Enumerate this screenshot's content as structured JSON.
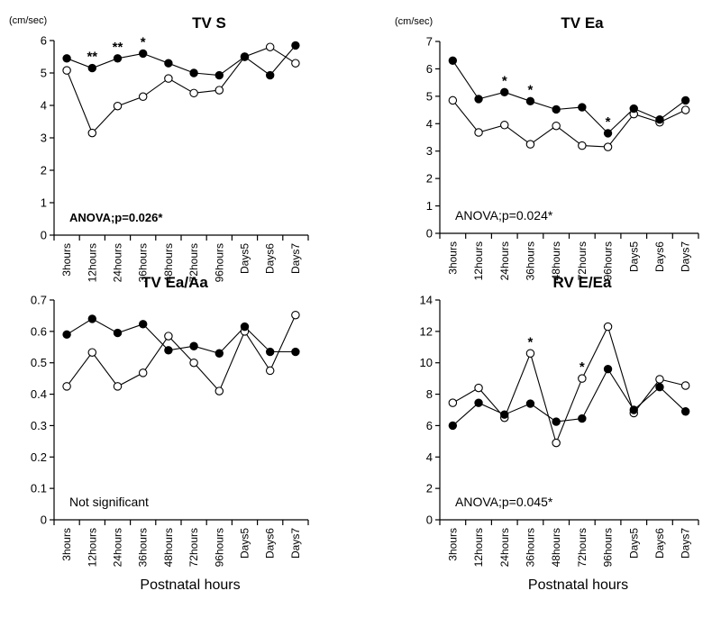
{
  "chart_data": [
    {
      "type": "line",
      "title": "TV S",
      "unit_label": "(cm/sec)",
      "xlabel": "",
      "ylabel": "",
      "ylim": [
        0,
        6
      ],
      "yticks": [
        "0",
        "1",
        "2",
        "3",
        "4",
        "5",
        "6"
      ],
      "categories": [
        "3hours",
        "12hours",
        "24hours",
        "36hours",
        "48hours",
        "72hours",
        "96hours",
        "Days5",
        "Days6",
        "Days7"
      ],
      "series": [
        {
          "style": "filled",
          "values": [
            5.45,
            5.15,
            5.45,
            5.6,
            5.3,
            5.0,
            4.93,
            5.5,
            4.93,
            5.85
          ]
        },
        {
          "style": "open",
          "values": [
            5.08,
            3.15,
            3.98,
            4.27,
            4.83,
            4.38,
            4.47,
            5.5,
            5.8,
            5.3
          ]
        }
      ],
      "significance": [
        "",
        "**",
        "**",
        "*",
        "",
        "",
        "",
        "",
        "",
        ""
      ],
      "annotation": "ANOVA;p=0.026*",
      "annotation_bold": true
    },
    {
      "type": "line",
      "title": "TV Ea",
      "unit_label": "(cm/sec)",
      "xlabel": "",
      "ylabel": "",
      "ylim": [
        0,
        7
      ],
      "yticks": [
        "0",
        "1",
        "2",
        "3",
        "4",
        "5",
        "6",
        "7"
      ],
      "categories": [
        "3hours",
        "12hours",
        "24hours",
        "36hours",
        "48hours",
        "72hours",
        "96hours",
        "Days5",
        "Days6",
        "Days7"
      ],
      "series": [
        {
          "style": "filled",
          "values": [
            6.3,
            4.9,
            5.15,
            4.82,
            4.52,
            4.6,
            3.65,
            4.55,
            4.15,
            4.85
          ]
        },
        {
          "style": "open",
          "values": [
            4.85,
            3.68,
            3.95,
            3.25,
            3.92,
            3.2,
            3.15,
            4.35,
            4.05,
            4.5
          ]
        }
      ],
      "significance": [
        "",
        "",
        "*",
        "*",
        "",
        "",
        "*",
        "",
        "",
        ""
      ],
      "annotation": "ANOVA;p=0.024*",
      "annotation_bold": false
    },
    {
      "type": "line",
      "title": "TV Ea/Aa",
      "unit_label": "",
      "xlabel": "Postnatal hours",
      "ylabel": "",
      "ylim": [
        0,
        0.7
      ],
      "yticks": [
        "0",
        "0.1",
        "0.2",
        "0.3",
        "0.4",
        "0.5",
        "0.6",
        "0.7"
      ],
      "categories": [
        "3hours",
        "12hours",
        "24hours",
        "36hours",
        "48hours",
        "72hours",
        "96hours",
        "Days5",
        "Days6",
        "Days7"
      ],
      "series": [
        {
          "style": "filled",
          "values": [
            0.59,
            0.64,
            0.595,
            0.623,
            0.54,
            0.553,
            0.53,
            0.615,
            0.535,
            0.535
          ]
        },
        {
          "style": "open",
          "values": [
            0.425,
            0.533,
            0.425,
            0.468,
            0.585,
            0.5,
            0.41,
            0.6,
            0.475,
            0.652
          ]
        }
      ],
      "significance": [
        "",
        "",
        "",
        "",
        "",
        "",
        "",
        "",
        "",
        ""
      ],
      "annotation": "Not significant",
      "annotation_bold": false
    },
    {
      "type": "line",
      "title": "RV E/Ea",
      "unit_label": "",
      "xlabel": "Postnatal hours",
      "ylabel": "",
      "ylim": [
        0,
        14
      ],
      "yticks": [
        "0",
        "2",
        "4",
        "6",
        "8",
        "10",
        "12",
        "14"
      ],
      "categories": [
        "3hours",
        "12hours",
        "24hours",
        "36hours",
        "48hours",
        "72hours",
        "96hours",
        "Days5",
        "Days6",
        "Days7"
      ],
      "series": [
        {
          "style": "filled",
          "values": [
            6.0,
            7.45,
            6.7,
            7.4,
            6.25,
            6.45,
            9.6,
            7.0,
            8.45,
            6.9
          ]
        },
        {
          "style": "open",
          "values": [
            7.45,
            8.4,
            6.5,
            10.6,
            4.9,
            9.0,
            12.3,
            6.8,
            8.95,
            8.55
          ]
        }
      ],
      "significance": [
        "",
        "",
        "",
        "*",
        "",
        "*",
        "",
        "",
        "",
        ""
      ],
      "annotation": "ANOVA;p=0.045*",
      "annotation_bold": false
    }
  ]
}
